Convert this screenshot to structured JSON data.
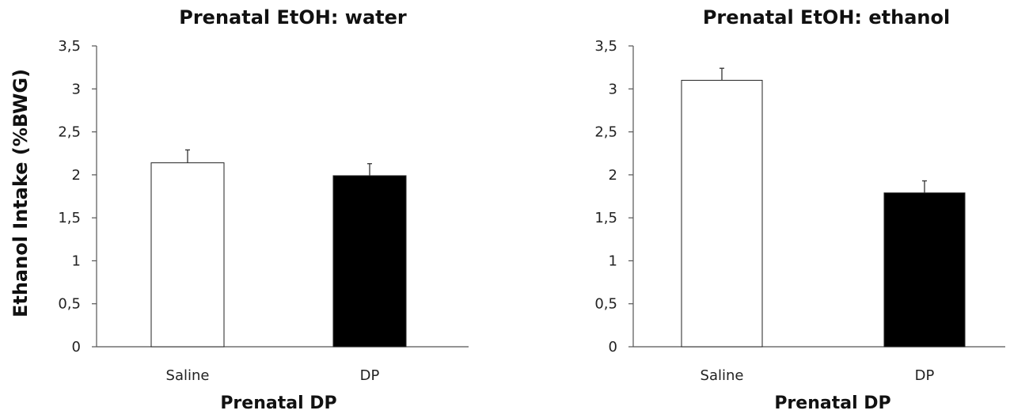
{
  "figure": {
    "ylabel": "Ethanol Intake (%BWG)"
  },
  "chart_data": [
    {
      "type": "bar",
      "title": "Prenatal EtOH: water",
      "xlabel": "Prenatal DP",
      "ylabel": "Ethanol Intake (%BWG)",
      "categories": [
        "Saline",
        "DP"
      ],
      "values": [
        2.14,
        1.99
      ],
      "errors": [
        0.15,
        0.14
      ],
      "colors": [
        "#ffffff",
        "#000000"
      ],
      "ylim": [
        0,
        3.5
      ],
      "yticks": [
        {
          "value": 0,
          "label": "0"
        },
        {
          "value": 0.5,
          "label": "0,5"
        },
        {
          "value": 1,
          "label": "1"
        },
        {
          "value": 1.5,
          "label": "1,5"
        },
        {
          "value": 2,
          "label": "2"
        },
        {
          "value": 2.5,
          "label": "2,5"
        },
        {
          "value": 3,
          "label": "3"
        },
        {
          "value": 3.5,
          "label": "3,5"
        }
      ],
      "grid": false
    },
    {
      "type": "bar",
      "title": "Prenatal EtOH: ethanol",
      "xlabel": "Prenatal DP",
      "ylabel": "",
      "categories": [
        "Saline",
        "DP"
      ],
      "values": [
        3.1,
        1.79
      ],
      "errors": [
        0.14,
        0.14
      ],
      "colors": [
        "#ffffff",
        "#000000"
      ],
      "ylim": [
        0,
        3.5
      ],
      "yticks": [
        {
          "value": 0,
          "label": "0"
        },
        {
          "value": 0.5,
          "label": "0,5"
        },
        {
          "value": 1,
          "label": "1"
        },
        {
          "value": 1.5,
          "label": "1,5"
        },
        {
          "value": 2,
          "label": "2"
        },
        {
          "value": 2.5,
          "label": "2,5"
        },
        {
          "value": 3,
          "label": "3"
        },
        {
          "value": 3.5,
          "label": "3,5"
        }
      ],
      "grid": false
    }
  ]
}
